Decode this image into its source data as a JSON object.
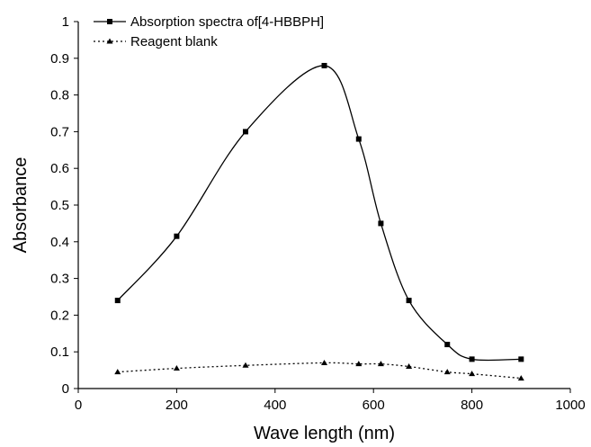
{
  "chart_data": {
    "type": "line",
    "title": "",
    "xlabel": "Wave length (nm)",
    "ylabel": "Absorbance",
    "xlim": [
      0,
      1000
    ],
    "ylim": [
      0,
      1
    ],
    "x_ticks": [
      "0",
      "200",
      "400",
      "600",
      "800",
      "1000"
    ],
    "y_ticks": [
      "0",
      "0.1",
      "0.2",
      "0.3",
      "0.4",
      "0.5",
      "0.6",
      "0.7",
      "0.8",
      "0.9",
      "1"
    ],
    "grid": false,
    "legend_position": "top-left",
    "series": [
      {
        "name": "Absorption spectra of[4-HBBPH]",
        "marker": "square",
        "line_style": "solid",
        "color": "#000000",
        "x": [
          80,
          200,
          340,
          500,
          570,
          615,
          672,
          750,
          800,
          900
        ],
        "y": [
          0.24,
          0.415,
          0.7,
          0.88,
          0.68,
          0.45,
          0.24,
          0.12,
          0.08,
          0.08
        ]
      },
      {
        "name": "Reagent blank",
        "marker": "triangle",
        "line_style": "dotted",
        "color": "#000000",
        "x": [
          80,
          200,
          340,
          500,
          570,
          615,
          672,
          750,
          800,
          900
        ],
        "y": [
          0.045,
          0.055,
          0.063,
          0.07,
          0.067,
          0.067,
          0.06,
          0.045,
          0.04,
          0.028
        ]
      }
    ]
  }
}
